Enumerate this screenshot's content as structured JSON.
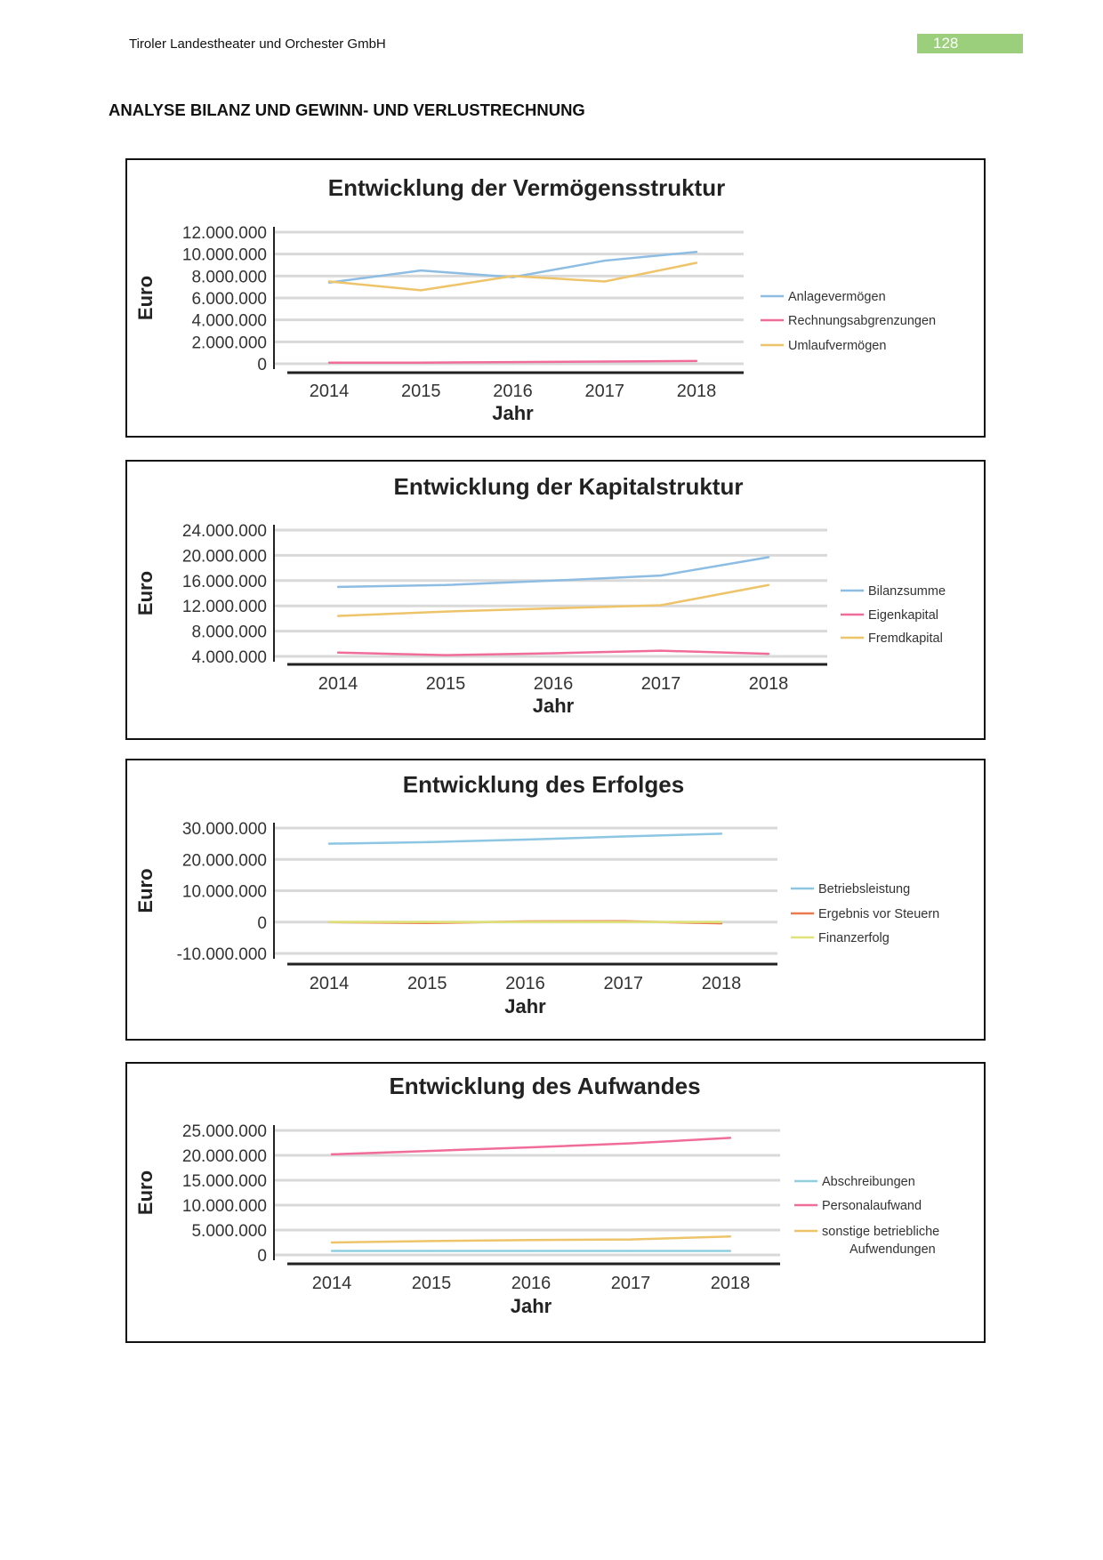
{
  "header": {
    "company": "Tiroler Landestheater und Orchester GmbH",
    "page_number": "128"
  },
  "section_title": "ANALYSE BILANZ UND GEWINN- UND VERLUSTRECHNUNG",
  "chart_data": [
    {
      "type": "line",
      "title": "Entwicklung der Vermögensstruktur",
      "xlabel": "Jahr",
      "ylabel": "Euro",
      "categories": [
        "2014",
        "2015",
        "2016",
        "2017",
        "2018"
      ],
      "ylim": [
        0,
        12000000
      ],
      "yticks": [
        "12.000.000",
        "10.000.000",
        "8.000.000",
        "6.000.000",
        "4.000.000",
        "2.000.000",
        "0"
      ],
      "legend": "right",
      "grid": true,
      "series": [
        {
          "name": "Anlagevermögen",
          "color": "#8dbde3",
          "values": [
            7400000,
            8500000,
            7900000,
            9400000,
            10200000
          ]
        },
        {
          "name": "Rechnungsabgrenzungen",
          "color": "#f06d9b",
          "values": [
            100000,
            100000,
            150000,
            200000,
            250000
          ]
        },
        {
          "name": "Umlaufvermögen",
          "color": "#eec46a",
          "values": [
            7500000,
            6700000,
            8000000,
            7500000,
            9200000
          ]
        }
      ]
    },
    {
      "type": "line",
      "title": "Entwicklung der Kapitalstruktur",
      "xlabel": "Jahr",
      "ylabel": "Euro",
      "categories": [
        "2014",
        "2015",
        "2016",
        "2017",
        "2018"
      ],
      "ylim": [
        4000000,
        24000000
      ],
      "yticks": [
        "24.000.000",
        "20.000.000",
        "16.000.000",
        "12.000.000",
        "8.000.000",
        "4.000.000"
      ],
      "legend": "right",
      "grid": true,
      "series": [
        {
          "name": "Bilanzsumme",
          "color": "#8dbde3",
          "values": [
            15000000,
            15300000,
            16000000,
            16800000,
            19700000
          ]
        },
        {
          "name": "Eigenkapital",
          "color": "#f06d9b",
          "values": [
            4600000,
            4200000,
            4500000,
            4900000,
            4400000
          ]
        },
        {
          "name": "Fremdkapital",
          "color": "#eec46a",
          "values": [
            10400000,
            11100000,
            11600000,
            12100000,
            15300000
          ]
        }
      ]
    },
    {
      "type": "line",
      "title": "Entwicklung des Erfolges",
      "xlabel": "Jahr",
      "ylabel": "Euro",
      "categories": [
        "2014",
        "2015",
        "2016",
        "2017",
        "2018"
      ],
      "ylim": [
        -10000000,
        30000000
      ],
      "yticks": [
        "30.000.000",
        "20.000.000",
        "10.000.000",
        "0",
        "-10.000.000"
      ],
      "legend": "right",
      "grid": true,
      "series": [
        {
          "name": "Betriebsleistung",
          "color": "#8dc6e3",
          "values": [
            25000000,
            25500000,
            26300000,
            27300000,
            28200000
          ]
        },
        {
          "name": "Ergebnis vor Steuern",
          "color": "#ea7a50",
          "values": [
            0,
            -300000,
            200000,
            300000,
            -400000
          ]
        },
        {
          "name": "Finanzerfolg",
          "color": "#dfe47a",
          "values": [
            50000,
            50000,
            50000,
            50000,
            50000
          ]
        }
      ]
    },
    {
      "type": "line",
      "title": "Entwicklung des Aufwandes",
      "xlabel": "Jahr",
      "ylabel": "Euro",
      "categories": [
        "2014",
        "2015",
        "2016",
        "2017",
        "2018"
      ],
      "ylim": [
        0,
        25000000
      ],
      "yticks": [
        "25.000.000",
        "20.000.000",
        "15.000.000",
        "10.000.000",
        "5.000.000",
        "0"
      ],
      "legend": "right",
      "grid": true,
      "series": [
        {
          "name": "Abschreibungen",
          "color": "#8fcfe0",
          "values": [
            800000,
            800000,
            800000,
            800000,
            800000
          ]
        },
        {
          "name": "Personalaufwand",
          "color": "#f06d9b",
          "values": [
            20200000,
            20900000,
            21600000,
            22400000,
            23500000
          ]
        },
        {
          "name": "sonstige betriebliche Aufwendungen",
          "color": "#eec46a",
          "values": [
            2500000,
            2800000,
            3000000,
            3100000,
            3700000
          ]
        }
      ]
    }
  ]
}
